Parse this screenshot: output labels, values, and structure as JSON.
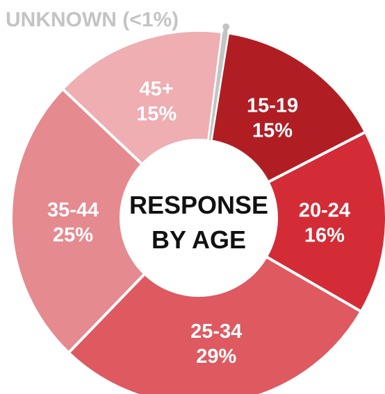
{
  "chart_data": {
    "type": "pie",
    "title": "RESPONSE BY AGE",
    "center_title_lines": [
      "RESPONSE",
      "BY AGE"
    ],
    "slices": [
      {
        "category": "15-19",
        "percent_label": "15%",
        "value": 15,
        "color": "#b01e24"
      },
      {
        "category": "20-24",
        "percent_label": "16%",
        "value": 16,
        "color": "#d42c36"
      },
      {
        "category": "25-34",
        "percent_label": "29%",
        "value": 29,
        "color": "#de5960"
      },
      {
        "category": "35-44",
        "percent_label": "25%",
        "value": 25,
        "color": "#e58a8f"
      },
      {
        "category": "45+",
        "percent_label": "15%",
        "value": 15,
        "color": "#eeaeb2"
      },
      {
        "category": "UNKNOWN",
        "percent_label": "(<1%)",
        "value": 0.5,
        "color": "#c4c4c4"
      }
    ],
    "callout": {
      "text": "UNKNOWN (<1%)",
      "color": "#c4c4c4"
    }
  }
}
